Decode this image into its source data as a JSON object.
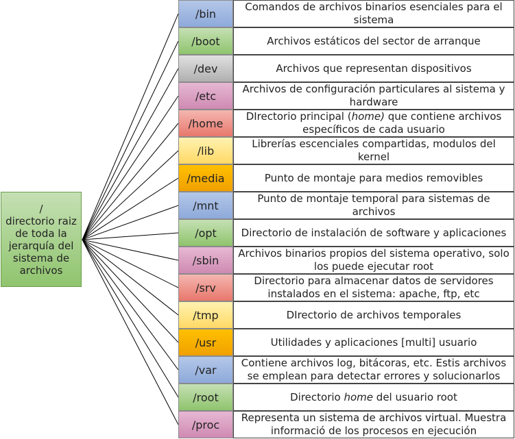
{
  "root": {
    "label": "/\ndirectorio raiz de toda la jerarquía del sistema de archivos"
  },
  "colors": {
    "root_fill_top": "#c5e0b4",
    "root_fill_bottom": "#8fc46d",
    "line": "#000000"
  },
  "directories": [
    {
      "name": "/bin",
      "desc": "Comandos de archivos binarios esenciales para el sistema",
      "fill_top": "#b4c7e7",
      "fill_bottom": "#8eaadb"
    },
    {
      "name": "/boot",
      "desc": "Archivos estáticos del sector de arranque",
      "fill_top": "#c5e0b4",
      "fill_bottom": "#8fc46d"
    },
    {
      "name": "/dev",
      "desc": "Archivos que representan dispositivos",
      "fill_top": "#e0e0e0",
      "fill_bottom": "#b0b0b0"
    },
    {
      "name": "/etc",
      "desc": "Archivos de configuración particulares al sistema y hardware",
      "fill_top": "#e6b8d3",
      "fill_bottom": "#cf8ab2"
    },
    {
      "name": "/home",
      "desc_before": "DIrectorio principal (",
      "desc_italic": "home)",
      "desc_after": " que contiene archivos específicos de cada usuario",
      "fill_top": "#f4b6b0",
      "fill_bottom": "#e8786c"
    },
    {
      "name": "/lib",
      "desc": "Librerías escenciales compartidas, modulos del kernel",
      "fill_top": "#fff2b0",
      "fill_bottom": "#ffd966"
    },
    {
      "name": "/media",
      "desc": "Punto de montaje para medios removibles",
      "fill_top": "#ffc000",
      "fill_bottom": "#f0a000"
    },
    {
      "name": "/mnt",
      "desc": "Punto de montaje temporal para sistemas de archivos",
      "fill_top": "#b4c7e7",
      "fill_bottom": "#8eaadb"
    },
    {
      "name": "/opt",
      "desc": "Directorio de instalación de software y aplicaciones",
      "fill_top": "#c5e0b4",
      "fill_bottom": "#8fc46d"
    },
    {
      "name": "/sbin",
      "desc": "Archivos binarios propios del sistema operativo, solo los puede ejecutar root",
      "fill_top": "#e6b8d3",
      "fill_bottom": "#cf8ab2"
    },
    {
      "name": "/srv",
      "desc": "Directorio para almacenar datos de servidores instalados en el sistema:  apache,  ftp, etc",
      "fill_top": "#f4b6b0",
      "fill_bottom": "#e8786c"
    },
    {
      "name": "/tmp",
      "desc": "DIrectorio de archivos temporales",
      "fill_top": "#fff2b0",
      "fill_bottom": "#ffd966"
    },
    {
      "name": "/usr",
      "desc": "Utilidades y aplicaciones [multi] usuario",
      "fill_top": "#ffc000",
      "fill_bottom": "#f0a000"
    },
    {
      "name": "/var",
      "desc": "Contiene archivos log, bitácoras, etc.  Estis archivos se emplean para detectar errores y solucionarlos",
      "fill_top": "#b4c7e7",
      "fill_bottom": "#8eaadb"
    },
    {
      "name": "/root",
      "desc_before": "Directorio ",
      "desc_italic": "home",
      "desc_after": " del usuario root",
      "fill_top": "#c5e0b4",
      "fill_bottom": "#8fc46d"
    },
    {
      "name": "/proc",
      "desc": "Representa un sistema de archivos virtual. Muestra informació de los procesos en ejecución",
      "fill_top": "#e6b8d3",
      "fill_bottom": "#cf8ab2"
    }
  ]
}
